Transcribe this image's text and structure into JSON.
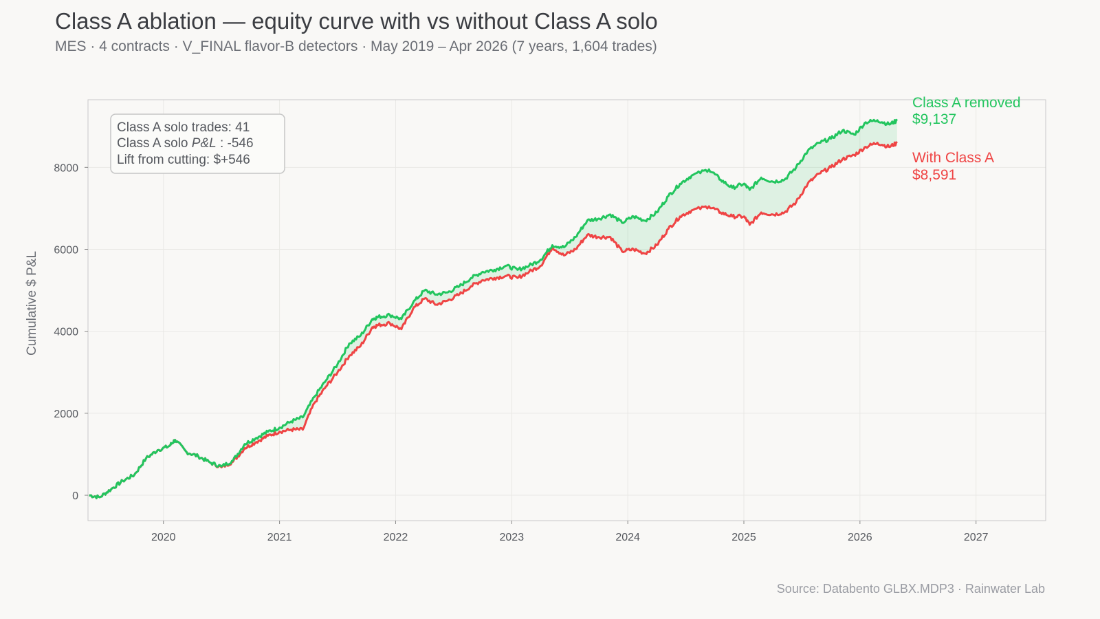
{
  "title": "Class A ablation — equity curve with vs without Class A solo",
  "subtitle": "MES · 4 contracts · V_FINAL flavor-B detectors · May 2019 – Apr 2026 (7 years, 1,604 trades)",
  "source": "Source: Databento GLBX.MDP3 · Rainwater Lab",
  "colors": {
    "removed": "#22c55e",
    "with": "#ef4444",
    "fill": "#22c55e",
    "grid": "#e9e8e5",
    "spine": "#c9c9c9"
  },
  "annotation": {
    "line1": "Class A solo trades: 41",
    "line2_prefix": "Class A solo ",
    "line2_italic": "P&L",
    "line2_suffix": " : -546",
    "line3": "Lift from cutting: $+546"
  },
  "chart_data": {
    "type": "line",
    "ylabel": "Cumulative $ P&L",
    "xlim": [
      2019.35,
      2027.6
    ],
    "ylim": [
      -620,
      9650
    ],
    "x_ticks": [
      2020,
      2021,
      2022,
      2023,
      2024,
      2025,
      2026,
      2027
    ],
    "y_ticks": [
      0,
      2000,
      4000,
      6000,
      8000
    ],
    "grid": true,
    "fill_between_series": true,
    "series": [
      {
        "name": "Class A removed",
        "color": "#22c55e",
        "end_value_label": "$9,137",
        "x": [
          2019.36,
          2019.45,
          2019.55,
          2019.65,
          2019.75,
          2019.85,
          2019.95,
          2020.05,
          2020.1,
          2020.2,
          2020.3,
          2020.4,
          2020.5,
          2020.6,
          2020.7,
          2020.8,
          2020.9,
          2021.0,
          2021.1,
          2021.2,
          2021.3,
          2021.4,
          2021.5,
          2021.6,
          2021.7,
          2021.8,
          2021.85,
          2021.95,
          2022.05,
          2022.15,
          2022.25,
          2022.35,
          2022.45,
          2022.55,
          2022.65,
          2022.75,
          2022.85,
          2022.95,
          2023.05,
          2023.15,
          2023.25,
          2023.35,
          2023.45,
          2023.55,
          2023.65,
          2023.75,
          2023.85,
          2023.95,
          2024.05,
          2024.15,
          2024.25,
          2024.35,
          2024.45,
          2024.55,
          2024.7,
          2024.8,
          2024.9,
          2025.0,
          2025.05,
          2025.15,
          2025.25,
          2025.35,
          2025.45,
          2025.55,
          2025.65,
          2025.75,
          2025.85,
          2025.95,
          2026.05,
          2026.15,
          2026.25,
          2026.32
        ],
        "y": [
          0,
          -50,
          150,
          350,
          500,
          900,
          1100,
          1200,
          1350,
          1050,
          950,
          800,
          700,
          850,
          1250,
          1400,
          1550,
          1650,
          1800,
          1900,
          2400,
          2800,
          3200,
          3700,
          3900,
          4300,
          4350,
          4400,
          4300,
          4700,
          5000,
          4900,
          4950,
          5100,
          5300,
          5450,
          5500,
          5600,
          5500,
          5600,
          5750,
          6100,
          6050,
          6300,
          6700,
          6750,
          6850,
          6650,
          6800,
          6700,
          6900,
          7300,
          7600,
          7800,
          7950,
          7700,
          7500,
          7600,
          7450,
          7750,
          7650,
          7700,
          8000,
          8400,
          8600,
          8700,
          8900,
          8800,
          9100,
          9150,
          9050,
          9137
        ]
      },
      {
        "name": "With Class A",
        "color": "#ef4444",
        "end_value_label": "$8,591",
        "x": [
          2019.36,
          2019.45,
          2019.55,
          2019.65,
          2019.75,
          2019.85,
          2019.95,
          2020.05,
          2020.1,
          2020.2,
          2020.3,
          2020.4,
          2020.5,
          2020.6,
          2020.7,
          2020.8,
          2020.9,
          2021.0,
          2021.1,
          2021.2,
          2021.3,
          2021.4,
          2021.5,
          2021.6,
          2021.7,
          2021.8,
          2021.85,
          2021.95,
          2022.05,
          2022.15,
          2022.25,
          2022.35,
          2022.45,
          2022.55,
          2022.65,
          2022.75,
          2022.85,
          2022.95,
          2023.05,
          2023.15,
          2023.25,
          2023.35,
          2023.45,
          2023.55,
          2023.65,
          2023.75,
          2023.85,
          2023.95,
          2024.05,
          2024.15,
          2024.25,
          2024.35,
          2024.45,
          2024.55,
          2024.7,
          2024.8,
          2024.9,
          2025.0,
          2025.05,
          2025.15,
          2025.25,
          2025.35,
          2025.45,
          2025.55,
          2025.65,
          2025.75,
          2025.85,
          2025.95,
          2026.05,
          2026.15,
          2026.25,
          2026.32
        ],
        "y": [
          0,
          -50,
          150,
          350,
          500,
          900,
          1100,
          1200,
          1350,
          1050,
          950,
          800,
          680,
          820,
          1150,
          1300,
          1450,
          1550,
          1600,
          1600,
          2250,
          2650,
          3000,
          3400,
          3650,
          4100,
          4150,
          4200,
          4050,
          4550,
          4800,
          4650,
          4750,
          4900,
          5100,
          5250,
          5300,
          5350,
          5300,
          5450,
          5600,
          6050,
          5850,
          6000,
          6350,
          6300,
          6300,
          5950,
          6000,
          5900,
          6100,
          6500,
          6800,
          6950,
          7050,
          6900,
          6800,
          6800,
          6600,
          6900,
          6850,
          6900,
          7150,
          7600,
          7850,
          8000,
          8200,
          8300,
          8500,
          8600,
          8500,
          8591
        ]
      }
    ]
  }
}
